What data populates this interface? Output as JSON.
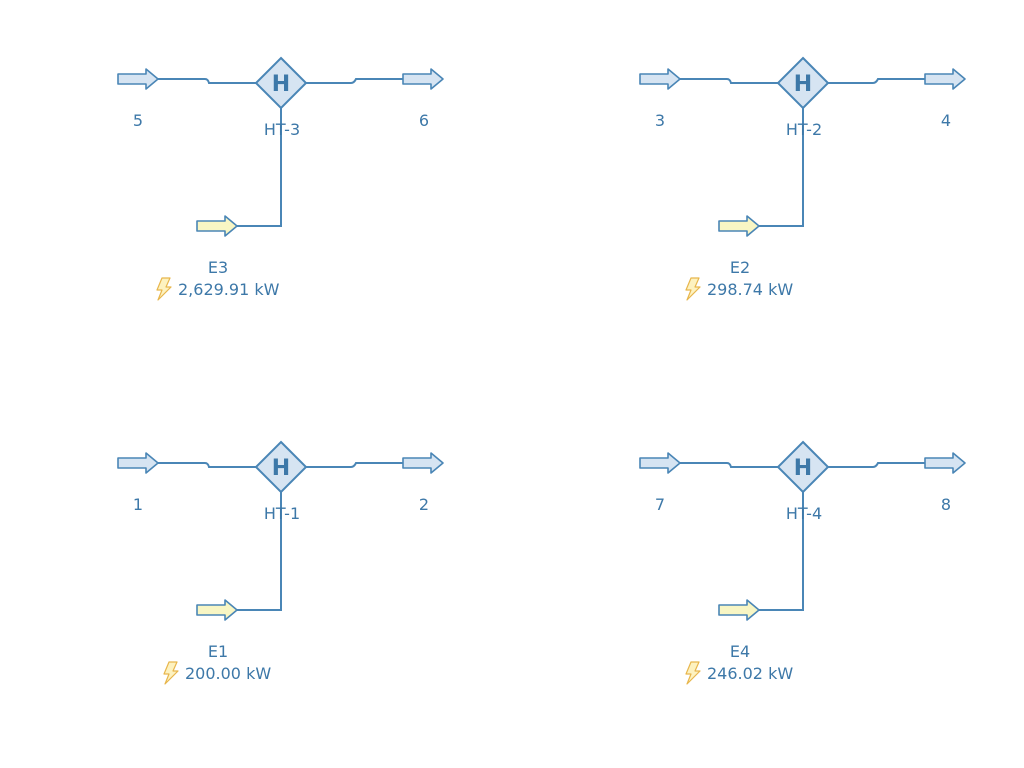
{
  "units": [
    {
      "heater_label": "HT-3",
      "heater_symbol": "H",
      "inlet_label": "5",
      "outlet_label": "6",
      "energy_label": "E3",
      "duty": "2,629.91 kW",
      "stream_color": "#d6e4f2",
      "energy_color": "#f8f6c4"
    },
    {
      "heater_label": "HT-2",
      "heater_symbol": "H",
      "inlet_label": "3",
      "outlet_label": "4",
      "energy_label": "E2",
      "duty": "298.74 kW",
      "stream_color": "#d6e4f2",
      "energy_color": "#f8f6c4"
    },
    {
      "heater_label": "HT-1",
      "heater_symbol": "H",
      "inlet_label": "1",
      "outlet_label": "2",
      "energy_label": "E1",
      "duty": "200.00 kW",
      "stream_color": "#d6e4f2",
      "energy_color": "#f8f6c4"
    },
    {
      "heater_label": "HT-4",
      "heater_symbol": "H",
      "inlet_label": "7",
      "outlet_label": "8",
      "energy_label": "E4",
      "duty": "246.02 kW",
      "stream_color": "#d6e4f2",
      "energy_color": "#f8f6c4"
    }
  ],
  "icons": {
    "energy_indicator": "lightning-bolt-icon"
  }
}
